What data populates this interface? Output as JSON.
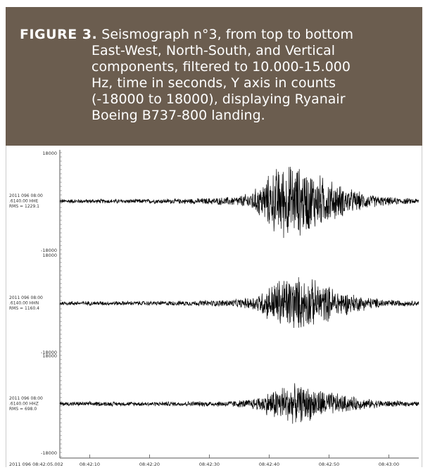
{
  "caption": {
    "label": "FIGURE 3.",
    "lines": [
      "Seismograph n°3, from top to bottom",
      "East-West, North-South, and Vertical",
      "components, filtered to 10.000-15.000",
      "Hz, time in seconds, Y axis in counts",
      "(-18000 to 18000), displaying Ryanair",
      "Boeing B737-800 landing."
    ],
    "background_color": "#6b5d4f",
    "text_color": "#ffffff"
  },
  "chart_data": {
    "type": "line",
    "x_tick_labels": [
      "2011 096 08:42:05.002",
      "08:42:10",
      "08:42:20",
      "08:42:30",
      "08:42:40",
      "08:42:50",
      "08:43:00"
    ],
    "x_ticks_seconds": [
      5.002,
      10,
      20,
      30,
      40,
      50,
      60
    ],
    "xlim": [
      5.002,
      65
    ],
    "ylim": [
      -18000,
      18000
    ],
    "series": [
      {
        "name": "HHE",
        "label_lines": [
          "2011 096 08:00",
          ".6140.00 HHE",
          "RMS = 1229.1"
        ],
        "ytick_top": "18000",
        "ytick_bottom": "-18000",
        "burst_peak_time": 42.5,
        "burst_peak_amplitude": 16500
      },
      {
        "name": "HHN",
        "label_lines": [
          "2011 096 08:00",
          ".6140.00 HHN",
          "RMS = 1160.4"
        ],
        "ytick_top": "18000",
        "ytick_bottom": "-18000",
        "burst_peak_time": 43.0,
        "burst_peak_amplitude": 12000
      },
      {
        "name": "HHZ",
        "label_lines": [
          "2011 096 08:00",
          ".6140.00 HHZ",
          "RMS = 698.0"
        ],
        "ytick_top": "18000",
        "ytick_bottom": "-18000",
        "burst_peak_time": 43.0,
        "burst_peak_amplitude": 8000
      }
    ],
    "grid": false,
    "line_color": "#000000"
  }
}
